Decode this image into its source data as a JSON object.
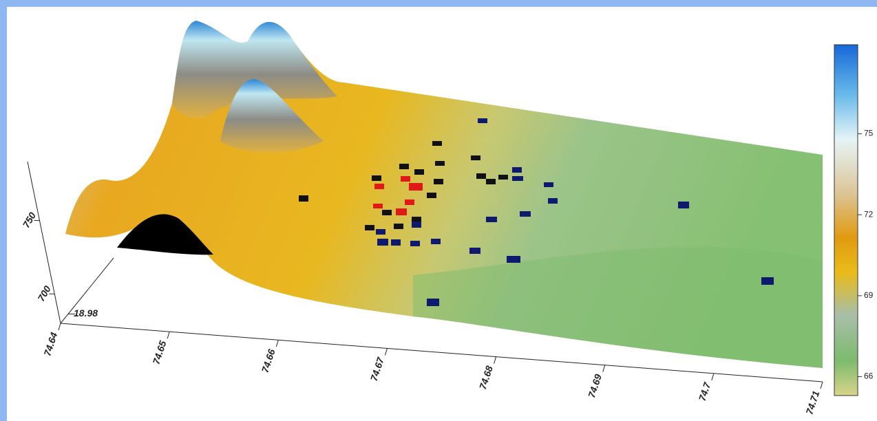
{
  "chart_data": {
    "type": "surface",
    "xlim": [
      74.64,
      74.71
    ],
    "xticks": [
      74.64,
      74.65,
      74.66,
      74.67,
      74.68,
      74.69,
      74.7,
      74.71
    ],
    "ylim": [
      18.975,
      19.01
    ],
    "yticks": [
      18.98
    ],
    "zlim": [
      680,
      790
    ],
    "zticks": [
      700,
      750
    ],
    "colorbar": {
      "lim": [
        65.3,
        78.3
      ],
      "ticks": [
        66,
        69,
        72,
        75
      ]
    }
  }
}
